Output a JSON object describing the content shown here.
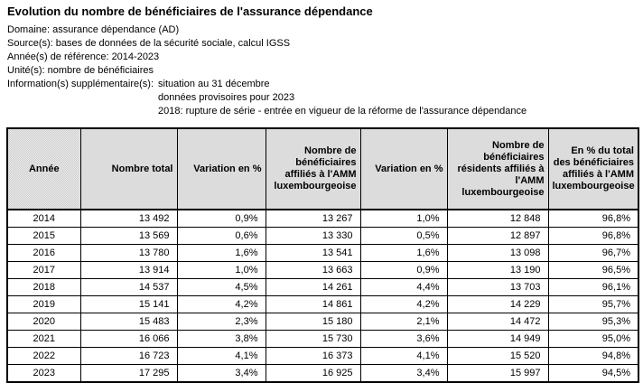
{
  "header": {
    "title": "Evolution du nombre de bénéficiaires de l'assurance dépendance",
    "meta_lines": [
      "Domaine: assurance dépendance (AD)",
      "Source(s): bases de données de la sécurité sociale, calcul IGSS",
      "Année(s) de référence: 2014-2023",
      "Unité(s): nombre de bénéficiaires"
    ],
    "info_label": "Information(s) supplémentaire(s):",
    "info_values": [
      "situation au 31 décembre",
      "données provisoires pour 2023",
      "2018: rupture de série - entrée en vigueur de la réforme de l'assurance dépendance"
    ]
  },
  "table": {
    "columns": [
      "Année",
      "Nombre total",
      "Variation en %",
      "Nombre de bénéficiaires affiliés à l'AMM luxembourgeoise",
      "Variation en %",
      "Nombre de bénéficiaires résidents affiliés à l'AMM luxembourgeoise",
      "En % du total des bénéficiaires affiliés à l'AMM luxembourgeoise"
    ],
    "rows": [
      [
        "2014",
        "13 492",
        "0,9%",
        "13 267",
        "1,0%",
        "12 848",
        "96,8%"
      ],
      [
        "2015",
        "13 569",
        "0,6%",
        "13 330",
        "0,5%",
        "12 897",
        "96,8%"
      ],
      [
        "2016",
        "13 780",
        "1,6%",
        "13 541",
        "1,6%",
        "13 098",
        "96,7%"
      ],
      [
        "2017",
        "13 914",
        "1,0%",
        "13 663",
        "0,9%",
        "13 190",
        "96,5%"
      ],
      [
        "2018",
        "14 537",
        "4,5%",
        "14 261",
        "4,4%",
        "13 703",
        "96,1%"
      ],
      [
        "2019",
        "15 141",
        "4,2%",
        "14 861",
        "4,2%",
        "14 229",
        "95,7%"
      ],
      [
        "2020",
        "15 483",
        "2,3%",
        "15 180",
        "2,1%",
        "14 472",
        "95,3%"
      ],
      [
        "2021",
        "16 066",
        "3,8%",
        "15 730",
        "3,6%",
        "14 949",
        "95,0%"
      ],
      [
        "2022",
        "16 723",
        "4,1%",
        "16 373",
        "4,1%",
        "15 520",
        "94,8%"
      ],
      [
        "2023",
        "17 295",
        "3,4%",
        "16 925",
        "3,4%",
        "15 997",
        "94,5%"
      ]
    ]
  },
  "colors": {
    "page_bg": "#ffffff",
    "text": "#000000",
    "table_border": "#000000",
    "header_cell_bg": "#d9d9d9"
  }
}
